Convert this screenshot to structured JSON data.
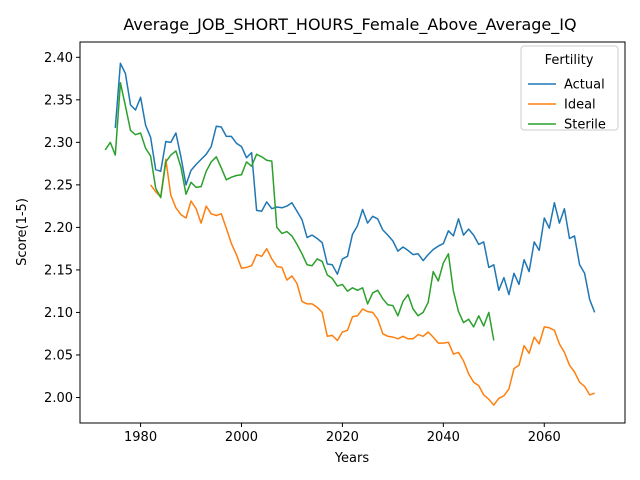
{
  "chart_data": {
    "type": "line",
    "title": "Average_JOB_SHORT_HOURS_Female_Above_Average_IQ",
    "xlabel": "Years",
    "ylabel": "Score(1-5)",
    "xlim": [
      1968,
      2076
    ],
    "ylim": [
      1.97,
      2.418
    ],
    "x_ticks": [
      1980,
      2000,
      2020,
      2040,
      2060
    ],
    "y_ticks": [
      2.0,
      2.05,
      2.1,
      2.15,
      2.2,
      2.25,
      2.3,
      2.35,
      2.4
    ],
    "y_tick_labels": [
      "2.00",
      "2.05",
      "2.10",
      "2.15",
      "2.20",
      "2.25",
      "2.30",
      "2.35",
      "2.40"
    ],
    "legend": {
      "title": "Fertility",
      "position": "top-right"
    },
    "series": [
      {
        "name": "Actual",
        "color": "#1f77b4",
        "x": [
          1975,
          1976,
          1977,
          1978,
          1979,
          1980,
          1981,
          1982,
          1983,
          1984,
          1985,
          1986,
          1987,
          1988,
          1989,
          1990,
          1991,
          1992,
          1993,
          1994,
          1995,
          1996,
          1997,
          1998,
          1999,
          2000,
          2001,
          2002,
          2003,
          2004,
          2005,
          2006,
          2007,
          2008,
          2009,
          2010,
          2011,
          2012,
          2013,
          2014,
          2015,
          2016,
          2017,
          2018,
          2019,
          2020,
          2021,
          2022,
          2023,
          2024,
          2025,
          2026,
          2027,
          2028,
          2029,
          2030,
          2031,
          2032,
          2033,
          2034,
          2035,
          2036,
          2037,
          2038,
          2039,
          2040,
          2041,
          2042,
          2043,
          2044,
          2045,
          2046,
          2047,
          2048,
          2049,
          2050,
          2051,
          2052,
          2053,
          2054,
          2055,
          2056,
          2057,
          2058,
          2059,
          2060,
          2061,
          2062,
          2063,
          2064,
          2065,
          2066,
          2067,
          2068,
          2069,
          2070
        ],
        "values": [
          2.317,
          2.393,
          2.381,
          2.344,
          2.338,
          2.353,
          2.32,
          2.306,
          2.268,
          2.266,
          2.301,
          2.3,
          2.311,
          2.283,
          2.25,
          2.267,
          2.274,
          2.28,
          2.286,
          2.295,
          2.319,
          2.318,
          2.307,
          2.307,
          2.299,
          2.295,
          2.282,
          2.288,
          2.22,
          2.219,
          2.23,
          2.222,
          2.224,
          2.223,
          2.225,
          2.229,
          2.219,
          2.209,
          2.188,
          2.191,
          2.187,
          2.182,
          2.157,
          2.156,
          2.145,
          2.163,
          2.166,
          2.192,
          2.202,
          2.221,
          2.205,
          2.213,
          2.21,
          2.197,
          2.191,
          2.184,
          2.172,
          2.177,
          2.173,
          2.168,
          2.169,
          2.161,
          2.168,
          2.174,
          2.178,
          2.181,
          2.196,
          2.19,
          2.21,
          2.191,
          2.198,
          2.191,
          2.18,
          2.183,
          2.153,
          2.156,
          2.126,
          2.141,
          2.121,
          2.146,
          2.133,
          2.162,
          2.148,
          2.183,
          2.173,
          2.211,
          2.199,
          2.229,
          2.205,
          2.222,
          2.187,
          2.19,
          2.156,
          2.146,
          2.115,
          2.1
        ]
      },
      {
        "name": "Ideal",
        "color": "#ff7f0e",
        "x": [
          1982,
          1983,
          1984,
          1985,
          1986,
          1987,
          1988,
          1989,
          1990,
          1991,
          1992,
          1993,
          1994,
          1995,
          1996,
          1997,
          1998,
          1999,
          2000,
          2001,
          2002,
          2003,
          2004,
          2005,
          2006,
          2007,
          2008,
          2009,
          2010,
          2011,
          2012,
          2013,
          2014,
          2015,
          2016,
          2017,
          2018,
          2019,
          2020,
          2021,
          2022,
          2023,
          2024,
          2025,
          2026,
          2027,
          2028,
          2029,
          2030,
          2031,
          2032,
          2033,
          2034,
          2035,
          2036,
          2037,
          2038,
          2039,
          2040,
          2041,
          2042,
          2043,
          2044,
          2045,
          2046,
          2047,
          2048,
          2049,
          2050,
          2051,
          2052,
          2053,
          2054,
          2055,
          2056,
          2057,
          2058,
          2059,
          2060,
          2061,
          2062,
          2063,
          2064,
          2065,
          2066,
          2067,
          2068,
          2069,
          2070
        ],
        "values": [
          2.25,
          2.242,
          2.236,
          2.28,
          2.238,
          2.223,
          2.215,
          2.211,
          2.231,
          2.222,
          2.205,
          2.225,
          2.216,
          2.214,
          2.216,
          2.199,
          2.181,
          2.168,
          2.152,
          2.153,
          2.155,
          2.168,
          2.166,
          2.175,
          2.163,
          2.154,
          2.153,
          2.138,
          2.143,
          2.134,
          2.113,
          2.11,
          2.11,
          2.106,
          2.1,
          2.072,
          2.073,
          2.067,
          2.077,
          2.079,
          2.095,
          2.096,
          2.104,
          2.101,
          2.1,
          2.092,
          2.075,
          2.072,
          2.071,
          2.069,
          2.072,
          2.069,
          2.069,
          2.074,
          2.072,
          2.077,
          2.071,
          2.064,
          2.064,
          2.065,
          2.051,
          2.053,
          2.043,
          2.028,
          2.018,
          2.014,
          2.003,
          1.998,
          1.991,
          1.999,
          2.002,
          2.01,
          2.034,
          2.038,
          2.061,
          2.052,
          2.071,
          2.063,
          2.083,
          2.082,
          2.079,
          2.063,
          2.053,
          2.038,
          2.03,
          2.018,
          2.013,
          2.003,
          2.005
        ]
      },
      {
        "name": "Sterile",
        "color": "#2ca02c",
        "x": [
          1973,
          1974,
          1975,
          1976,
          1977,
          1978,
          1979,
          1980,
          1981,
          1982,
          1983,
          1984,
          1985,
          1986,
          1987,
          1988,
          1989,
          1990,
          1991,
          1992,
          1993,
          1994,
          1995,
          1996,
          1997,
          1998,
          1999,
          2000,
          2001,
          2002,
          2003,
          2004,
          2005,
          2006,
          2007,
          2008,
          2009,
          2010,
          2011,
          2012,
          2013,
          2014,
          2015,
          2016,
          2017,
          2018,
          2019,
          2020,
          2021,
          2022,
          2023,
          2024,
          2025,
          2026,
          2027,
          2028,
          2029,
          2030,
          2031,
          2032,
          2033,
          2034,
          2035,
          2036,
          2037,
          2038,
          2039,
          2040,
          2041,
          2042,
          2043,
          2044,
          2045,
          2046,
          2047,
          2048,
          2049,
          2050
        ],
        "values": [
          2.291,
          2.3,
          2.285,
          2.37,
          2.343,
          2.314,
          2.309,
          2.311,
          2.293,
          2.284,
          2.246,
          2.235,
          2.277,
          2.285,
          2.29,
          2.271,
          2.239,
          2.253,
          2.247,
          2.248,
          2.266,
          2.277,
          2.283,
          2.27,
          2.256,
          2.259,
          2.261,
          2.262,
          2.277,
          2.272,
          2.286,
          2.283,
          2.279,
          2.278,
          2.2,
          2.193,
          2.195,
          2.19,
          2.18,
          2.169,
          2.156,
          2.155,
          2.163,
          2.16,
          2.144,
          2.14,
          2.131,
          2.133,
          2.125,
          2.129,
          2.126,
          2.129,
          2.11,
          2.123,
          2.126,
          2.116,
          2.109,
          2.108,
          2.096,
          2.113,
          2.121,
          2.104,
          2.096,
          2.1,
          2.112,
          2.148,
          2.137,
          2.158,
          2.169,
          2.125,
          2.101,
          2.088,
          2.092,
          2.083,
          2.096,
          2.084,
          2.1,
          2.067
        ]
      }
    ]
  }
}
